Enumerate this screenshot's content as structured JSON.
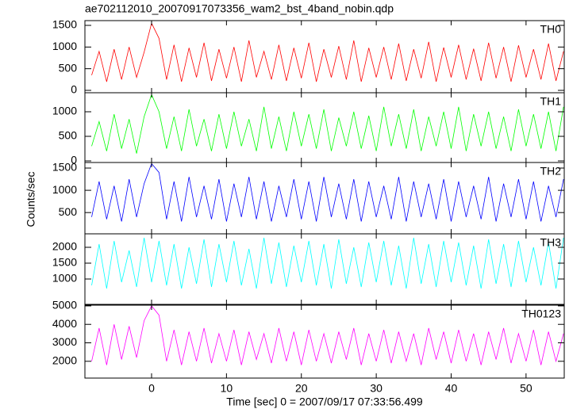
{
  "chart_data": [
    {
      "type": "line",
      "title": "ae702112010_20070917073356_wam2_bst_4band_nobin.qdp",
      "x": [
        -8,
        -7,
        -6,
        -5,
        -4,
        -3,
        -2,
        -1,
        0,
        1,
        2,
        3,
        4,
        5,
        6,
        7,
        8,
        9,
        10,
        11,
        12,
        13,
        14,
        15,
        16,
        17,
        18,
        19,
        20,
        21,
        22,
        23,
        24,
        25,
        26,
        27,
        28,
        29,
        30,
        31,
        32,
        33,
        34,
        35,
        36,
        37,
        38,
        39,
        40,
        41,
        42,
        43,
        44,
        45,
        46,
        47,
        48,
        49,
        50,
        51,
        52,
        53,
        54,
        55
      ],
      "series": [
        {
          "name": "TH0",
          "color": "#ff0000",
          "values": [
            350,
            900,
            200,
            950,
            250,
            1000,
            300,
            880,
            1550,
            1200,
            250,
            1050,
            200,
            980,
            300,
            1100,
            220,
            950,
            280,
            1000,
            200,
            1150,
            300,
            900,
            250,
            1050,
            220,
            980,
            280,
            1100,
            200,
            950,
            300,
            1020,
            250,
            1150,
            200,
            980,
            300,
            1000,
            250,
            1080,
            220,
            950,
            280,
            1120,
            200,
            990,
            300,
            1050,
            250,
            960,
            220,
            1100,
            280,
            1000,
            200,
            1040,
            300,
            950,
            250,
            1080,
            220,
            900
          ]
        }
      ],
      "xlim": [
        -8.9,
        55.1
      ],
      "ylim": [
        -55,
        1610
      ],
      "yticks": [
        0,
        500,
        1000,
        1500
      ]
    },
    {
      "type": "line",
      "x": [
        -8,
        -7,
        -6,
        -5,
        -4,
        -3,
        -2,
        -1,
        0,
        1,
        2,
        3,
        4,
        5,
        6,
        7,
        8,
        9,
        10,
        11,
        12,
        13,
        14,
        15,
        16,
        17,
        18,
        19,
        20,
        21,
        22,
        23,
        24,
        25,
        26,
        27,
        28,
        29,
        30,
        31,
        32,
        33,
        34,
        35,
        36,
        37,
        38,
        39,
        40,
        41,
        42,
        43,
        44,
        45,
        46,
        47,
        48,
        49,
        50,
        51,
        52,
        53,
        54,
        55
      ],
      "series": [
        {
          "name": "TH1",
          "color": "#00ff00",
          "values": [
            300,
            800,
            200,
            950,
            250,
            850,
            150,
            900,
            1350,
            1000,
            250,
            900,
            200,
            1050,
            300,
            850,
            200,
            950,
            250,
            1000,
            300,
            850,
            200,
            1100,
            250,
            900,
            200,
            1000,
            300,
            950,
            250,
            1050,
            200,
            880,
            300,
            1000,
            250,
            920,
            200,
            1100,
            300,
            950,
            250,
            1050,
            200,
            900,
            300,
            1000,
            250,
            1100,
            200,
            950,
            300,
            1000,
            250,
            900,
            200,
            1050,
            300,
            950,
            250,
            1000,
            200,
            1100
          ]
        }
      ],
      "xlim": [
        -8.9,
        55.1
      ],
      "ylim": [
        -32,
        1387
      ],
      "yticks": [
        0,
        500,
        1000
      ]
    },
    {
      "type": "line",
      "ylabel": "Counts/sec",
      "x": [
        -8,
        -7,
        -6,
        -5,
        -4,
        -3,
        -2,
        -1,
        0,
        1,
        2,
        3,
        4,
        5,
        6,
        7,
        8,
        9,
        10,
        11,
        12,
        13,
        14,
        15,
        16,
        17,
        18,
        19,
        20,
        21,
        22,
        23,
        24,
        25,
        26,
        27,
        28,
        29,
        30,
        31,
        32,
        33,
        34,
        35,
        36,
        37,
        38,
        39,
        40,
        41,
        42,
        43,
        44,
        45,
        46,
        47,
        48,
        49,
        50,
        51,
        52,
        53,
        54,
        55
      ],
      "series": [
        {
          "name": "TH2",
          "color": "#0000ff",
          "values": [
            400,
            1200,
            350,
            1100,
            300,
            1250,
            400,
            1150,
            1600,
            1400,
            350,
            1200,
            300,
            1300,
            400,
            1100,
            350,
            1250,
            300,
            1150,
            400,
            1300,
            350,
            1200,
            300,
            1100,
            400,
            1250,
            350,
            1200,
            300,
            1300,
            400,
            1150,
            350,
            1250,
            300,
            1200,
            400,
            1100,
            350,
            1300,
            300,
            1200,
            400,
            1150,
            350,
            1250,
            300,
            1200,
            400,
            1100,
            350,
            1300,
            300,
            1150,
            400,
            1250,
            350,
            1200,
            300,
            1100,
            400,
            1250
          ]
        }
      ],
      "xlim": [
        -8.9,
        55.1
      ],
      "ylim": [
        22,
        1625
      ],
      "yticks": [
        500,
        1000,
        1500
      ]
    },
    {
      "type": "line",
      "x": [
        -8,
        -7,
        -6,
        -5,
        -4,
        -3,
        -2,
        -1,
        0,
        1,
        2,
        3,
        4,
        5,
        6,
        7,
        8,
        9,
        10,
        11,
        12,
        13,
        14,
        15,
        16,
        17,
        18,
        19,
        20,
        21,
        22,
        23,
        24,
        25,
        26,
        27,
        28,
        29,
        30,
        31,
        32,
        33,
        34,
        35,
        36,
        37,
        38,
        39,
        40,
        41,
        42,
        43,
        44,
        45,
        46,
        47,
        48,
        49,
        50,
        51,
        52,
        53,
        54,
        55
      ],
      "series": [
        {
          "name": "TH3",
          "color": "#00ffff",
          "values": [
            800,
            2100,
            700,
            2200,
            900,
            1900,
            750,
            2300,
            900,
            2200,
            800,
            2100,
            700,
            2000,
            850,
            2250,
            750,
            2100,
            900,
            2200,
            800,
            1950,
            700,
            2300,
            850,
            2150,
            750,
            2050,
            900,
            2200,
            800,
            2100,
            700,
            2250,
            850,
            2000,
            750,
            2150,
            900,
            2200,
            800,
            2050,
            700,
            2300,
            850,
            2100,
            750,
            2200,
            900,
            2150,
            800,
            2050,
            700,
            2250,
            850,
            2100,
            750,
            2200,
            900,
            2000,
            800,
            2150,
            700,
            2300
          ]
        }
      ],
      "xlim": [
        -8.9,
        55.1
      ],
      "ylim": [
        200,
        2425
      ],
      "yticks": [
        1000,
        1500,
        2000
      ]
    },
    {
      "type": "line",
      "xlabel": "Time [sec] 0 = 2007/09/17 07:33:56.499",
      "x": [
        -8,
        -7,
        -6,
        -5,
        -4,
        -3,
        -2,
        -1,
        0,
        1,
        2,
        3,
        4,
        5,
        6,
        7,
        8,
        9,
        10,
        11,
        12,
        13,
        14,
        15,
        16,
        17,
        18,
        19,
        20,
        21,
        22,
        23,
        24,
        25,
        26,
        27,
        28,
        29,
        30,
        31,
        32,
        33,
        34,
        35,
        36,
        37,
        38,
        39,
        40,
        41,
        42,
        43,
        44,
        45,
        46,
        47,
        48,
        49,
        50,
        51,
        52,
        53,
        54,
        55
      ],
      "series": [
        {
          "name": "TH0123",
          "color": "#ff00ff",
          "values": [
            2000,
            3800,
            1800,
            4000,
            2100,
            3900,
            2200,
            4200,
            5000,
            4500,
            2000,
            3700,
            1800,
            3600,
            2000,
            3800,
            1900,
            3500,
            2000,
            3700,
            1800,
            3600,
            2100,
            3500,
            1900,
            3800,
            2000,
            3600,
            1800,
            3700,
            2000,
            3500,
            1900,
            3600,
            2100,
            3800,
            1800,
            3500,
            2000,
            3700,
            1900,
            3600,
            2000,
            3500,
            1800,
            3800,
            2100,
            3600,
            1900,
            3700,
            2000,
            3500,
            1800,
            3600,
            2100,
            3800,
            1900,
            3500,
            2000,
            3700,
            1800,
            3600,
            2000,
            3500
          ]
        }
      ],
      "xlim": [
        -8.9,
        55.1
      ],
      "ylim": [
        1090,
        5040
      ],
      "yticks": [
        2000,
        3000,
        4000,
        5000
      ],
      "xticks": [
        0,
        10,
        20,
        30,
        40,
        50
      ]
    }
  ]
}
